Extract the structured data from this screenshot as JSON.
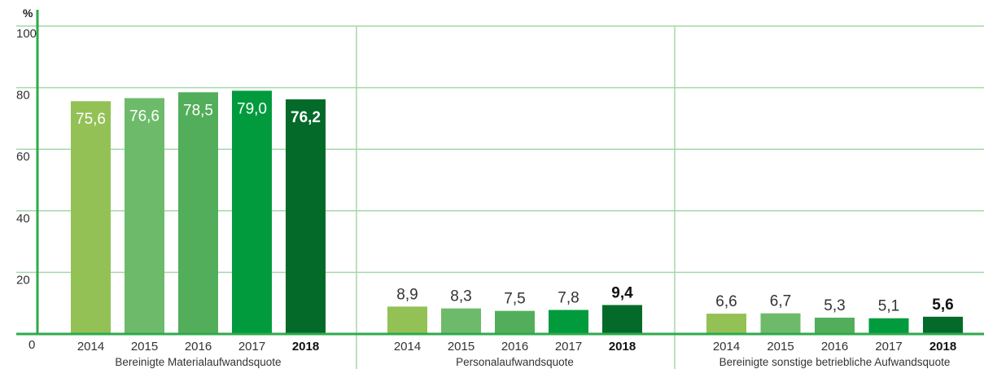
{
  "chart_data": {
    "type": "bar",
    "unit": "%",
    "ylim": [
      0,
      100
    ],
    "yticks": [
      "0",
      "20",
      "40",
      "60",
      "80",
      "100"
    ],
    "categories": [
      "2014",
      "2015",
      "2016",
      "2017",
      "2018"
    ],
    "highlight_category": "2018",
    "colors": [
      "#93c155",
      "#6dbb6a",
      "#52ae5a",
      "#019b3e",
      "#046a2a"
    ],
    "axis_color": "#2daa4a",
    "grid_color": "#a6d7a9",
    "groups": [
      {
        "name": "Bereinigte Materialaufwandsquote",
        "values": [
          75.6,
          76.6,
          78.5,
          79.0,
          76.2
        ],
        "labels": [
          "75,6",
          "76,6",
          "78,5",
          "79,0",
          "76,2"
        ]
      },
      {
        "name": "Personalaufwandsquote",
        "values": [
          8.9,
          8.3,
          7.5,
          7.8,
          9.4
        ],
        "labels": [
          "8,9",
          "8,3",
          "7,5",
          "7,8",
          "9,4"
        ]
      },
      {
        "name": "Bereinigte sonstige betriebliche Aufwandsquote",
        "values": [
          6.6,
          6.7,
          5.3,
          5.1,
          5.6
        ],
        "labels": [
          "6,6",
          "6,7",
          "5,3",
          "5,1",
          "5,6"
        ]
      }
    ]
  }
}
